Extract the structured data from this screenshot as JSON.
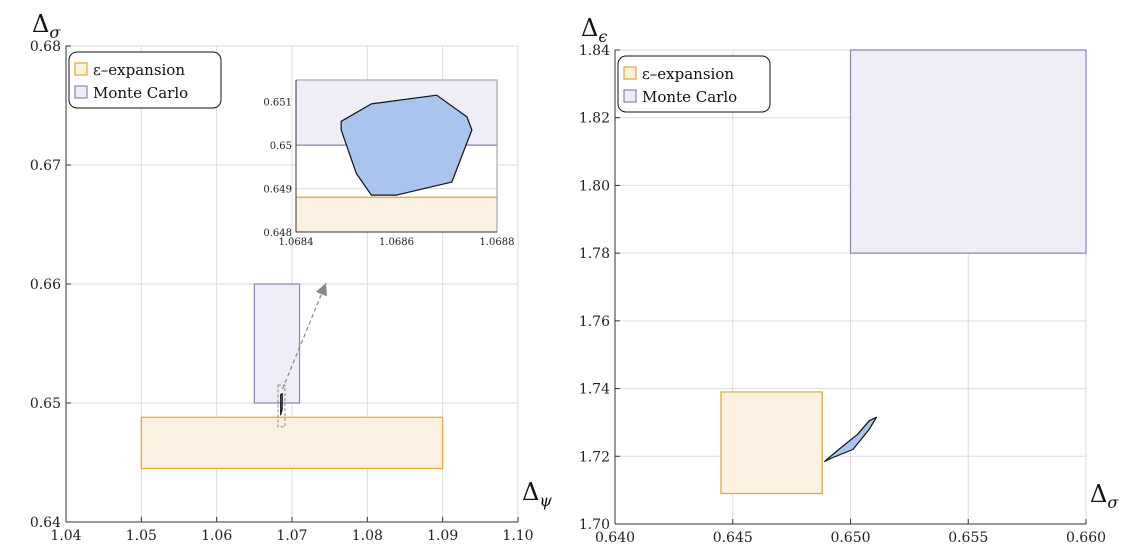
{
  "colors": {
    "eps_stroke": "#E8A33A",
    "eps_fill": "#FBF1E0",
    "mc_stroke": "#8A82B8",
    "mc_fill": "#EFEDF6",
    "island_fill": "#A9C5EE",
    "island_stroke": "#111111",
    "grid": "#DDDDDD",
    "arrow": "#888888"
  },
  "chart_data": [
    {
      "type": "region-plot",
      "xlabel": {
        "main": "Δ",
        "sub": "ψ"
      },
      "ylabel": {
        "main": "Δ",
        "sub": "σ"
      },
      "xlim": [
        1.04,
        1.1
      ],
      "ylim": [
        0.64,
        0.68
      ],
      "xticks": [
        "1.04",
        "1.05",
        "1.06",
        "1.07",
        "1.08",
        "1.09",
        "1.10"
      ],
      "yticks": [
        "0.64",
        "0.65",
        "0.66",
        "0.67",
        "0.68"
      ],
      "grid": true,
      "legend": {
        "position": "top-left",
        "entries": [
          "ε–expansion",
          "Monte Carlo"
        ]
      },
      "regions": [
        {
          "kind": "eps",
          "x": [
            1.05,
            1.09
          ],
          "y": [
            0.6445,
            0.6488
          ]
        },
        {
          "kind": "mc",
          "x": [
            1.065,
            1.071
          ],
          "y": [
            0.65,
            0.66
          ]
        }
      ],
      "island": [
        [
          1.0685,
          0.6507
        ],
        [
          1.0687,
          0.6508
        ],
        [
          1.0687,
          0.6495
        ],
        [
          1.0685,
          0.649
        ]
      ],
      "inset": {
        "xlim": [
          1.0684,
          1.0688
        ],
        "ylim": [
          0.648,
          0.6515
        ],
        "xticks": [
          "1.0684",
          "1.0686",
          "1.0688"
        ],
        "yticks": [
          "0.648",
          "0.649",
          "0.65",
          "0.651"
        ],
        "eps_y": [
          0.648,
          0.6488
        ],
        "mc_y": [
          0.65,
          0.6515
        ],
        "island": [
          [
            1.06849,
            0.65055
          ],
          [
            1.06855,
            0.65095
          ],
          [
            1.06868,
            0.65115
          ],
          [
            1.06874,
            0.65065
          ],
          [
            1.06875,
            0.65035
          ],
          [
            1.06871,
            0.64915
          ],
          [
            1.0686,
            0.64885
          ],
          [
            1.06855,
            0.64885
          ],
          [
            1.06852,
            0.64935
          ],
          [
            1.06849,
            0.65035
          ]
        ]
      }
    },
    {
      "type": "region-plot",
      "xlabel": {
        "main": "Δ",
        "sub": "σ"
      },
      "ylabel": {
        "main": "Δ",
        "sub": "ϵ"
      },
      "xlim": [
        0.64,
        0.66
      ],
      "ylim": [
        1.7,
        1.84
      ],
      "xticks": [
        "0.640",
        "0.645",
        "0.650",
        "0.655",
        "0.660"
      ],
      "yticks": [
        "1.70",
        "1.72",
        "1.74",
        "1.76",
        "1.78",
        "1.80",
        "1.82",
        "1.84"
      ],
      "grid": true,
      "legend": {
        "position": "top-left",
        "entries": [
          "ε–expansion",
          "Monte Carlo"
        ]
      },
      "regions": [
        {
          "kind": "eps",
          "x": [
            0.6445,
            0.6488
          ],
          "y": [
            1.709,
            1.739
          ]
        },
        {
          "kind": "mc",
          "x": [
            0.65,
            0.66
          ],
          "y": [
            1.78,
            1.84
          ]
        }
      ],
      "island": [
        [
          0.6489,
          1.7185
        ],
        [
          0.6495,
          1.722
        ],
        [
          0.6503,
          1.7265
        ],
        [
          0.6508,
          1.7305
        ],
        [
          0.6511,
          1.7315
        ],
        [
          0.6508,
          1.728
        ],
        [
          0.6501,
          1.722
        ],
        [
          0.6492,
          1.7195
        ]
      ]
    }
  ]
}
